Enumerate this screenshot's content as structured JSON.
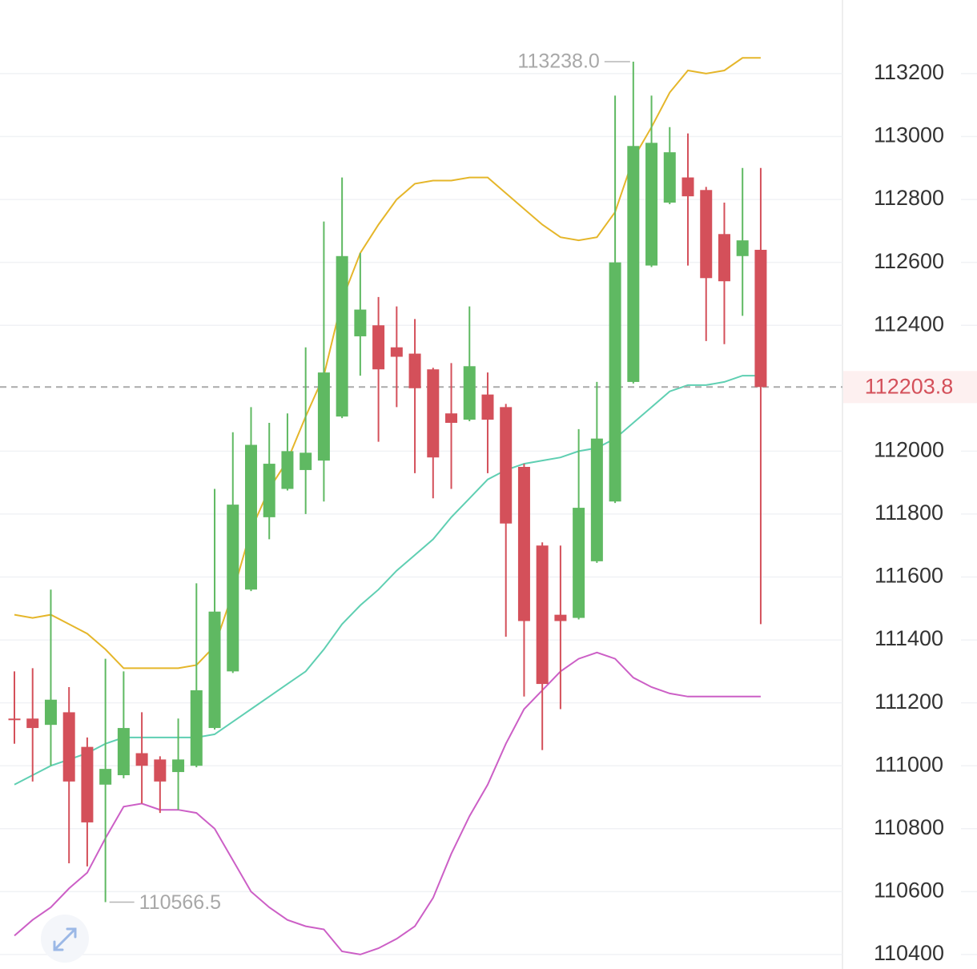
{
  "chart_data": {
    "type": "candlestick",
    "ylim": [
      110354,
      113434
    ],
    "yticks": [
      110400,
      110600,
      110800,
      111000,
      111200,
      111400,
      111600,
      111800,
      112000,
      112400,
      112600,
      112800,
      113000,
      113200
    ],
    "grid": true,
    "up_color": "#5fb962",
    "down_color": "#d4505a",
    "open": [
      111150,
      111150,
      111130,
      111170,
      111060,
      110940,
      110970,
      111040,
      111020,
      110980,
      111000,
      111120,
      111300,
      111560,
      111790,
      111880,
      111940,
      111970,
      112110,
      112365,
      112400,
      112330,
      112310,
      112260,
      112120,
      112100,
      112180,
      112140,
      111950,
      111700,
      111480,
      111470,
      111650,
      111840,
      112220,
      112590,
      112790,
      112870,
      112830,
      112690,
      112620,
      112640
    ],
    "high": [
      111300,
      111310,
      111560,
      111250,
      111090,
      111340,
      111300,
      111170,
      111030,
      111150,
      111580,
      111880,
      112060,
      112140,
      112090,
      112120,
      112330,
      112730,
      112870,
      112630,
      112490,
      112460,
      112420,
      112265,
      112280,
      112460,
      112250,
      112150,
      111960,
      111710,
      111700,
      112070,
      112220,
      113130,
      113238,
      113130,
      113030,
      113010,
      112840,
      112790,
      112900,
      112900
    ],
    "low": [
      111070,
      110950,
      111000,
      110690,
      110680,
      110566.5,
      110960,
      110880,
      110850,
      110860,
      110995,
      111115,
      111295,
      111555,
      111720,
      111875,
      111800,
      111840,
      112105,
      112240,
      112030,
      112140,
      111930,
      111850,
      111880,
      112095,
      111930,
      111410,
      111220,
      111050,
      111180,
      111465,
      111645,
      111835,
      112215,
      112585,
      112785,
      112590,
      112350,
      112340,
      112430,
      111450
    ],
    "close": [
      111145,
      111120,
      111210,
      110950,
      110820,
      110990,
      111120,
      111000,
      110950,
      111020,
      111240,
      111490,
      111830,
      112020,
      111960,
      112000,
      111995,
      112250,
      112620,
      112450,
      112260,
      112300,
      112200,
      111980,
      112090,
      112270,
      112100,
      111770,
      111460,
      111260,
      111460,
      111820,
      112040,
      112600,
      112970,
      112980,
      112950,
      112810,
      112550,
      112540,
      112670,
      112203.8
    ],
    "bands": [
      {
        "color": "#e5b62a",
        "values": [
          111480,
          111470,
          111480,
          111450,
          111420,
          111370,
          111310,
          111310,
          111310,
          111310,
          111320,
          111380,
          111550,
          111750,
          111880,
          111970,
          112110,
          112240,
          112480,
          112630,
          112720,
          112800,
          112850,
          112860,
          112860,
          112870,
          112870,
          112820,
          112770,
          112720,
          112680,
          112670,
          112680,
          112760,
          112930,
          113030,
          113140,
          113210,
          113200,
          113210,
          113250,
          113250
        ]
      },
      {
        "color": "#5fcfb2",
        "values": [
          110940,
          110970,
          111000,
          111020,
          111040,
          111070,
          111090,
          111090,
          111090,
          111090,
          111090,
          111100,
          111140,
          111180,
          111220,
          111260,
          111300,
          111370,
          111450,
          111510,
          111560,
          111620,
          111670,
          111720,
          111790,
          111850,
          111910,
          111940,
          111960,
          111970,
          111980,
          112000,
          112010,
          112040,
          112090,
          112140,
          112190,
          112210,
          112210,
          112220,
          112240,
          112240
        ]
      },
      {
        "color": "#cc5fc6",
        "values": [
          110460,
          110510,
          110550,
          110610,
          110660,
          110770,
          110870,
          110880,
          110860,
          110860,
          110850,
          110800,
          110700,
          110600,
          110550,
          110510,
          110490,
          110480,
          110410,
          110400,
          110420,
          110450,
          110490,
          110580,
          110720,
          110840,
          110940,
          111070,
          111180,
          111240,
          111300,
          111340,
          111360,
          111340,
          111280,
          111250,
          111230,
          111220,
          111220,
          111220,
          111220,
          111220
        ]
      }
    ],
    "annotations": {
      "max": {
        "value": 113238,
        "label": "113238.0"
      },
      "min": {
        "value": 110566.5,
        "label": "110566.5"
      },
      "last": {
        "value": 112203.8,
        "label": "112203.8"
      }
    }
  }
}
